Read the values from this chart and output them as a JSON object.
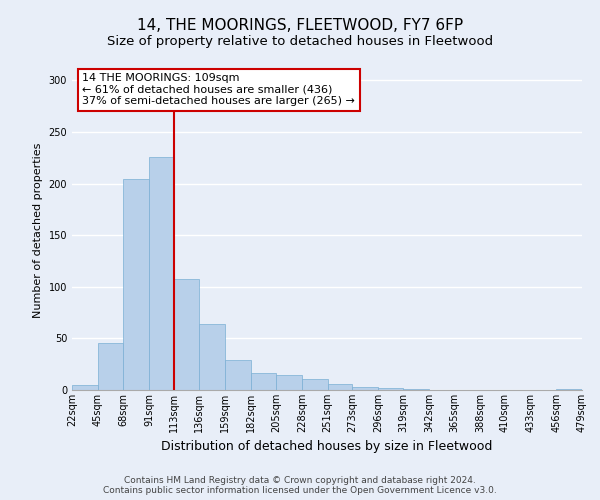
{
  "title": "14, THE MOORINGS, FLEETWOOD, FY7 6FP",
  "subtitle": "Size of property relative to detached houses in Fleetwood",
  "xlabel": "Distribution of detached houses by size in Fleetwood",
  "ylabel": "Number of detached properties",
  "bin_edges": [
    22,
    45,
    68,
    91,
    113,
    136,
    159,
    182,
    205,
    228,
    251,
    273,
    296,
    319,
    342,
    365,
    388,
    410,
    433,
    456,
    479
  ],
  "bar_heights": [
    5,
    46,
    204,
    226,
    108,
    64,
    29,
    16,
    15,
    11,
    6,
    3,
    2,
    1,
    0,
    0,
    0,
    0,
    0,
    1
  ],
  "bar_color": "#b8d0ea",
  "bar_edge_color": "#7aafd4",
  "vline_x": 113,
  "vline_color": "#cc0000",
  "annotation_text": "14 THE MOORINGS: 109sqm\n← 61% of detached houses are smaller (436)\n37% of semi-detached houses are larger (265) →",
  "annotation_box_color": "#ffffff",
  "annotation_box_edge_color": "#cc0000",
  "ylim": [
    0,
    310
  ],
  "yticks": [
    0,
    50,
    100,
    150,
    200,
    250,
    300
  ],
  "tick_labels": [
    "22sqm",
    "45sqm",
    "68sqm",
    "91sqm",
    "113sqm",
    "136sqm",
    "159sqm",
    "182sqm",
    "205sqm",
    "228sqm",
    "251sqm",
    "273sqm",
    "296sqm",
    "319sqm",
    "342sqm",
    "365sqm",
    "388sqm",
    "410sqm",
    "433sqm",
    "456sqm",
    "479sqm"
  ],
  "background_color": "#e8eef8",
  "grid_color": "#ffffff",
  "footer_line1": "Contains HM Land Registry data © Crown copyright and database right 2024.",
  "footer_line2": "Contains public sector information licensed under the Open Government Licence v3.0.",
  "title_fontsize": 11,
  "subtitle_fontsize": 9.5,
  "xlabel_fontsize": 9,
  "ylabel_fontsize": 8,
  "tick_fontsize": 7,
  "footer_fontsize": 6.5,
  "annotation_fontsize": 8
}
